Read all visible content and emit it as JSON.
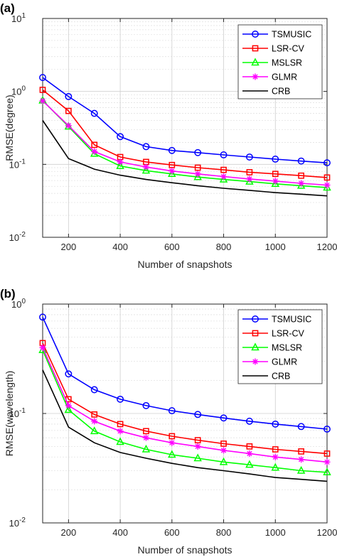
{
  "chart_data": [
    {
      "type": "line",
      "panel_label": "(a)",
      "xlabel": "Number of snapshots",
      "ylabel": "RMSE(degree)",
      "xlim": [
        100,
        1200
      ],
      "ylim": [
        0.01,
        10
      ],
      "yscale": "log",
      "grid": true,
      "legend_position": "top-right",
      "x": [
        100,
        200,
        300,
        400,
        500,
        600,
        700,
        800,
        900,
        1000,
        1100,
        1200
      ],
      "xticks": [
        200,
        400,
        600,
        800,
        1000,
        1200
      ],
      "xtick_labels": [
        "200",
        "400",
        "600",
        "800",
        "1000",
        "1200"
      ],
      "ytick_labels": [
        {
          "base": "10",
          "exp": "-2"
        },
        {
          "base": "10",
          "exp": "-1"
        },
        {
          "base": "10",
          "exp": "0"
        },
        {
          "base": "10",
          "exp": "1"
        }
      ],
      "series": [
        {
          "name": "TSMUSIC",
          "color": "#0000ff",
          "marker": "circle",
          "values": [
            1.55,
            0.85,
            0.5,
            0.24,
            0.175,
            0.155,
            0.145,
            0.135,
            0.126,
            0.118,
            0.111,
            0.105
          ]
        },
        {
          "name": "LSR-CV",
          "color": "#ff0000",
          "marker": "square",
          "values": [
            1.05,
            0.54,
            0.185,
            0.126,
            0.108,
            0.098,
            0.09,
            0.084,
            0.078,
            0.074,
            0.07,
            0.066
          ]
        },
        {
          "name": "MSLSR",
          "color": "#00ff00",
          "marker": "triangle",
          "values": [
            0.75,
            0.33,
            0.14,
            0.095,
            0.082,
            0.074,
            0.067,
            0.062,
            0.058,
            0.054,
            0.051,
            0.048
          ]
        },
        {
          "name": "GLMR",
          "color": "#ff00ff",
          "marker": "asterisk",
          "values": [
            0.74,
            0.34,
            0.15,
            0.108,
            0.092,
            0.081,
            0.074,
            0.068,
            0.063,
            0.059,
            0.055,
            0.052
          ]
        },
        {
          "name": "CRB",
          "color": "#000000",
          "marker": "none",
          "values": [
            0.4,
            0.12,
            0.086,
            0.071,
            0.062,
            0.056,
            0.051,
            0.047,
            0.044,
            0.041,
            0.039,
            0.037
          ]
        }
      ]
    },
    {
      "type": "line",
      "panel_label": "(b)",
      "xlabel": "Number of snapshots",
      "ylabel": "RMSE(wavelength)",
      "xlim": [
        100,
        1200
      ],
      "ylim": [
        0.01,
        1
      ],
      "yscale": "log",
      "grid": true,
      "legend_position": "top-right",
      "x": [
        100,
        200,
        300,
        400,
        500,
        600,
        700,
        800,
        900,
        1000,
        1100,
        1200
      ],
      "xticks": [
        200,
        400,
        600,
        800,
        1000,
        1200
      ],
      "xtick_labels": [
        "200",
        "400",
        "600",
        "800",
        "1000",
        "1200"
      ],
      "ytick_labels": [
        {
          "base": "10",
          "exp": "-2"
        },
        {
          "base": "10",
          "exp": "-1"
        },
        {
          "base": "10",
          "exp": "0"
        }
      ],
      "series": [
        {
          "name": "TSMUSIC",
          "color": "#0000ff",
          "marker": "circle",
          "values": [
            0.76,
            0.23,
            0.165,
            0.135,
            0.118,
            0.106,
            0.098,
            0.091,
            0.085,
            0.08,
            0.076,
            0.072
          ]
        },
        {
          "name": "LSR-CV",
          "color": "#ff0000",
          "marker": "square",
          "values": [
            0.44,
            0.135,
            0.098,
            0.08,
            0.069,
            0.062,
            0.057,
            0.053,
            0.05,
            0.047,
            0.045,
            0.043
          ]
        },
        {
          "name": "MSLSR",
          "color": "#00ff00",
          "marker": "triangle",
          "values": [
            0.38,
            0.108,
            0.069,
            0.055,
            0.047,
            0.042,
            0.039,
            0.036,
            0.034,
            0.032,
            0.03,
            0.029
          ]
        },
        {
          "name": "GLMR",
          "color": "#ff00ff",
          "marker": "asterisk",
          "values": [
            0.4,
            0.118,
            0.085,
            0.069,
            0.06,
            0.054,
            0.05,
            0.046,
            0.043,
            0.04,
            0.038,
            0.036
          ]
        },
        {
          "name": "CRB",
          "color": "#000000",
          "marker": "none",
          "values": [
            0.25,
            0.075,
            0.054,
            0.044,
            0.039,
            0.035,
            0.032,
            0.03,
            0.028,
            0.026,
            0.025,
            0.024
          ]
        }
      ]
    }
  ]
}
